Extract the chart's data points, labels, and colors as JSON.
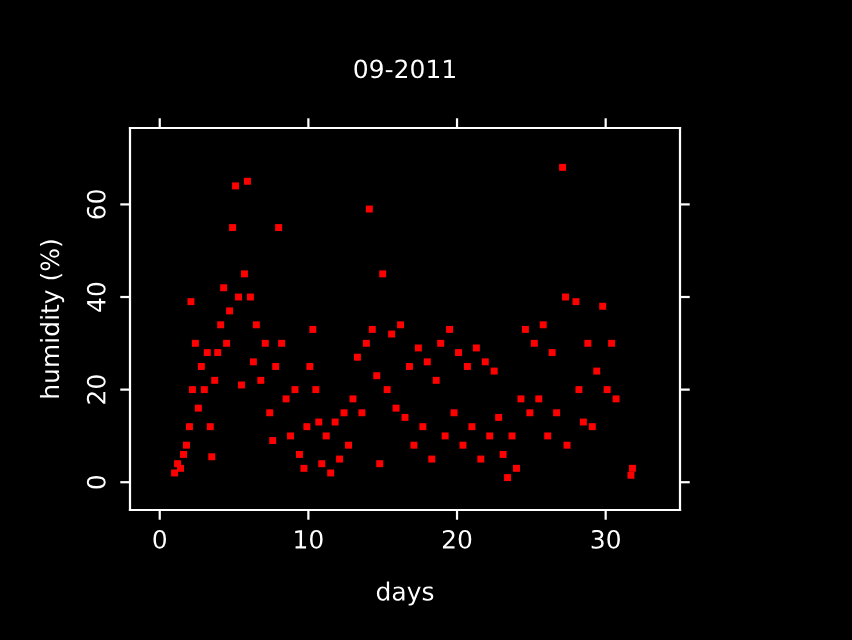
{
  "chart_data": {
    "type": "scatter",
    "title": "09-2011",
    "xlabel": "days",
    "ylabel": "humidity (%)",
    "xlim": [
      -2,
      35
    ],
    "xticks": [
      0,
      10,
      20,
      30
    ],
    "ylim": [
      -6,
      76.5
    ],
    "yticks": [
      0,
      20,
      40,
      60
    ],
    "grid": false,
    "legend": false,
    "marker": "square",
    "series": [
      {
        "color": "#ff0000",
        "x": [
          1.0,
          1.2,
          1.4,
          1.6,
          1.8,
          2.0,
          2.1,
          2.2,
          2.4,
          2.6,
          2.8,
          3.0,
          3.2,
          3.4,
          3.5,
          3.7,
          3.9,
          4.1,
          4.3,
          4.5,
          4.7,
          4.9,
          5.1,
          5.3,
          5.5,
          5.7,
          5.9,
          6.1,
          6.3,
          6.5,
          6.8,
          7.1,
          7.4,
          7.6,
          7.8,
          8.0,
          8.2,
          8.5,
          8.8,
          9.1,
          9.4,
          9.7,
          9.9,
          10.1,
          10.3,
          10.5,
          10.7,
          10.9,
          11.2,
          11.5,
          11.8,
          12.1,
          12.4,
          12.7,
          13.0,
          13.3,
          13.6,
          13.9,
          14.1,
          14.3,
          14.6,
          14.8,
          15.0,
          15.3,
          15.6,
          15.9,
          16.2,
          16.5,
          16.8,
          17.1,
          17.4,
          17.7,
          18.0,
          18.3,
          18.6,
          18.9,
          19.2,
          19.5,
          19.8,
          20.1,
          20.4,
          20.7,
          21.0,
          21.3,
          21.6,
          21.9,
          22.2,
          22.5,
          22.8,
          23.1,
          23.4,
          23.7,
          24.0,
          24.3,
          24.6,
          24.9,
          25.2,
          25.5,
          25.8,
          26.1,
          26.4,
          26.7,
          27.1,
          27.3,
          27.4,
          28.0,
          28.2,
          28.5,
          28.8,
          29.1,
          29.4,
          29.8,
          30.1,
          30.4,
          30.7,
          31.7,
          31.8
        ],
        "values": [
          2,
          4,
          3,
          6,
          8,
          12,
          39,
          20,
          30,
          16,
          25,
          20,
          28,
          12,
          5.5,
          22,
          28,
          34,
          42,
          30,
          37,
          55,
          64,
          40,
          21,
          45,
          65,
          40,
          26,
          34,
          22,
          30,
          15,
          9,
          25,
          55,
          30,
          18,
          10,
          20,
          6,
          3,
          12,
          25,
          33,
          20,
          13,
          4,
          10,
          2,
          13,
          5,
          15,
          8,
          18,
          27,
          15,
          30,
          59,
          33,
          23,
          4,
          45,
          20,
          32,
          16,
          34,
          14,
          25,
          8,
          29,
          12,
          26,
          5,
          22,
          30,
          10,
          33,
          15,
          28,
          8,
          25,
          12,
          29,
          5,
          26,
          10,
          24,
          14,
          6,
          1,
          10,
          3,
          18,
          33,
          15,
          30,
          18,
          34,
          10,
          28,
          15,
          68,
          40,
          8,
          39,
          20,
          13,
          30,
          12,
          24,
          38,
          20,
          30,
          18,
          1.5,
          3
        ]
      }
    ]
  }
}
